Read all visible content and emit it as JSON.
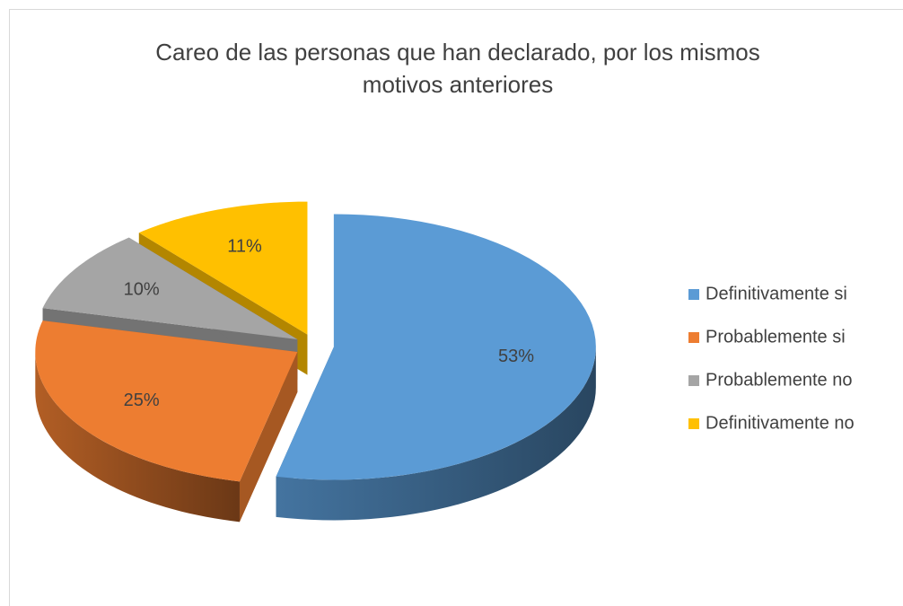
{
  "chart_data": {
    "type": "pie",
    "title": "Careo de las personas que han declarado, por los mismos motivos anteriores",
    "categories": [
      "Definitivamente si",
      "Probablemente si",
      "Probablemente no",
      "Definitivamente no"
    ],
    "values": [
      53,
      25,
      10,
      11
    ],
    "value_labels": [
      "53%",
      "25%",
      "10%",
      "11%"
    ],
    "colors": [
      "#5b9bd5",
      "#ed7d31",
      "#a5a5a5",
      "#ffc000"
    ],
    "legend": "right"
  }
}
